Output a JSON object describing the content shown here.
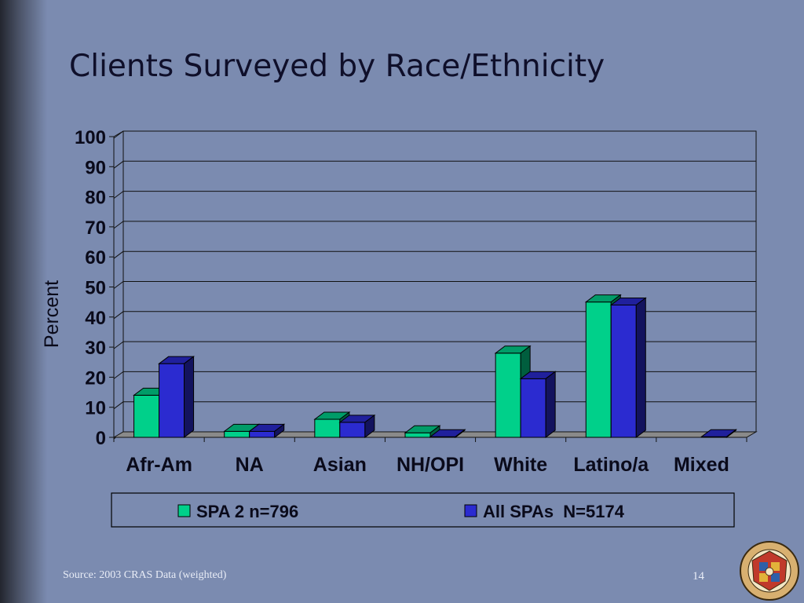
{
  "slide": {
    "title": "Clients Surveyed by Race/Ethnicity",
    "source": "Source: 2003 CRAS Data (weighted)",
    "page_number": "14"
  },
  "seal_text": "COUNTY OF LOS ANGELES · CALIFORNIA",
  "colors": {
    "series1": "#00d08a",
    "series2": "#2b2bd0",
    "background": "#7b8bb0"
  },
  "chart_data": {
    "type": "bar",
    "ylabel": "Percent",
    "ylim": [
      0,
      100
    ],
    "yticks": [
      0,
      10,
      20,
      30,
      40,
      50,
      60,
      70,
      80,
      90,
      100
    ],
    "categories": [
      "Afr-Am",
      "NA",
      "Asian",
      "NH/OPI",
      "White",
      "Latino/a",
      "Mixed"
    ],
    "series": [
      {
        "name": "SPA 2 n=796",
        "values": [
          14,
          2,
          6,
          1.5,
          28,
          45,
          0
        ]
      },
      {
        "name": "All SPAs  N=5174",
        "values": [
          24.5,
          2,
          5,
          0.2,
          19.5,
          44,
          0.2
        ]
      }
    ],
    "grid": true,
    "legend_position": "bottom"
  }
}
